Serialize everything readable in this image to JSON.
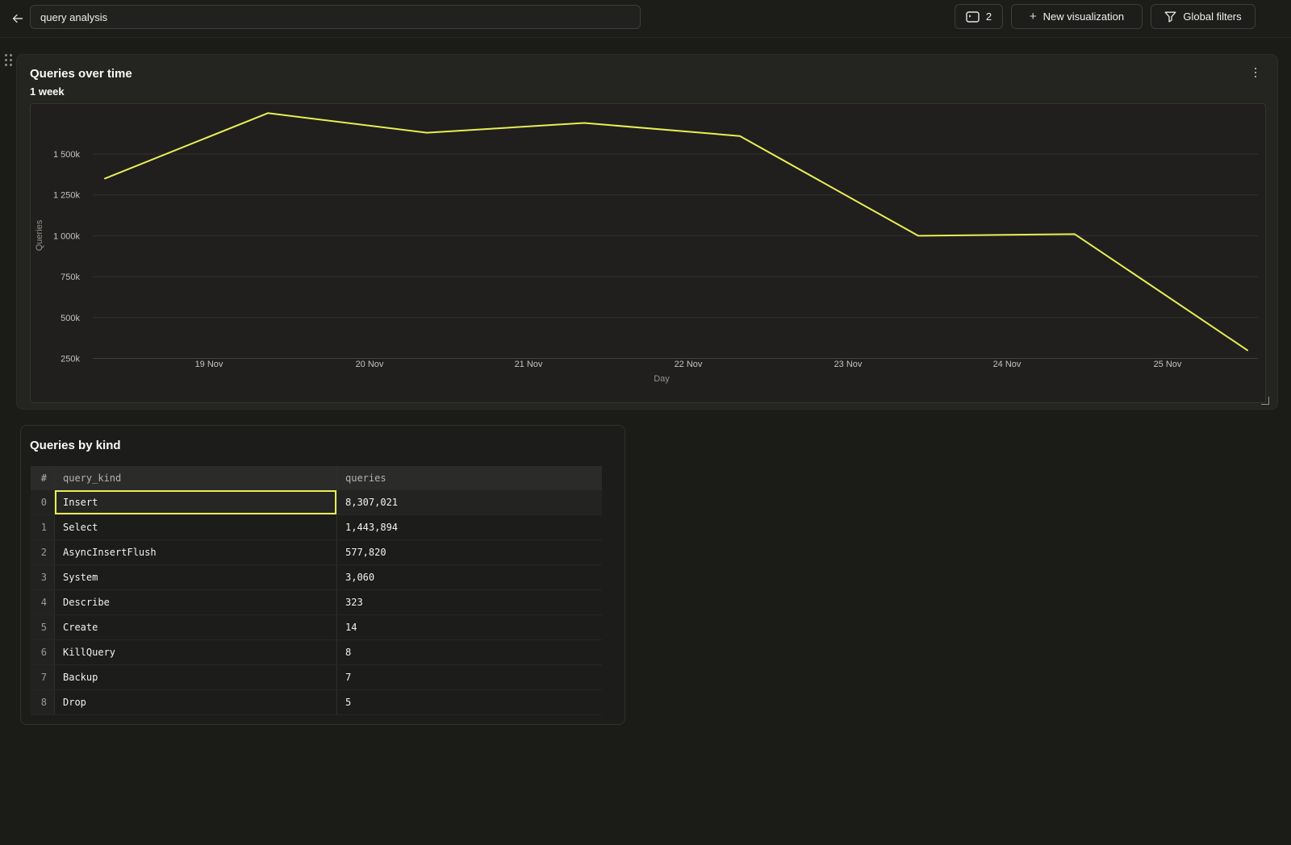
{
  "topbar": {
    "back_icon": "arrow-left",
    "dashboard_name": "query analysis",
    "tabs_button": {
      "icon": "console-icon",
      "count": "2"
    },
    "new_visualization": {
      "plus": "+",
      "label": "New visualization"
    },
    "global_filters": {
      "icon": "funnel-icon",
      "label": "Global filters"
    }
  },
  "chart_panel": {
    "title": "Queries over time",
    "subtitle": "1 week",
    "menu_icon": "kebab-menu"
  },
  "chart_data": {
    "type": "line",
    "title": "Queries over time",
    "xlabel": "Day",
    "ylabel": "Queries",
    "grid": true,
    "legend": false,
    "line_color": "#e9ee55",
    "y_ticks": [
      {
        "label": "1 500k",
        "value": 1500000
      },
      {
        "label": "1 250k",
        "value": 1250000
      },
      {
        "label": "1 000k",
        "value": 1000000
      },
      {
        "label": "750k",
        "value": 750000
      },
      {
        "label": "500k",
        "value": 500000
      },
      {
        "label": "250k",
        "value": 250000
      }
    ],
    "x_ticks": [
      "19 Nov",
      "20 Nov",
      "21 Nov",
      "22 Nov",
      "23 Nov",
      "24 Nov",
      "25 Nov"
    ],
    "series": [
      {
        "name": "Queries",
        "x": [
          "18 Nov",
          "19 Nov",
          "20 Nov",
          "21 Nov",
          "22 Nov",
          "23 Nov",
          "24 Nov",
          "25 Nov"
        ],
        "values": [
          1350000,
          1750000,
          1630000,
          1690000,
          1610000,
          1000000,
          1010000,
          300000
        ]
      }
    ]
  },
  "table_panel": {
    "title": "Queries by kind",
    "columns": [
      "#",
      "query_kind",
      "queries"
    ],
    "rows": [
      {
        "idx": "0",
        "query_kind": "Insert",
        "queries": "8,307,021",
        "selected": true
      },
      {
        "idx": "1",
        "query_kind": "Select",
        "queries": "1,443,894",
        "selected": false
      },
      {
        "idx": "2",
        "query_kind": "AsyncInsertFlush",
        "queries": "577,820",
        "selected": false
      },
      {
        "idx": "3",
        "query_kind": "System",
        "queries": "3,060",
        "selected": false
      },
      {
        "idx": "4",
        "query_kind": "Describe",
        "queries": "323",
        "selected": false
      },
      {
        "idx": "5",
        "query_kind": "Create",
        "queries": "14",
        "selected": false
      },
      {
        "idx": "6",
        "query_kind": "KillQuery",
        "queries": "8",
        "selected": false
      },
      {
        "idx": "7",
        "query_kind": "Backup",
        "queries": "7",
        "selected": false
      },
      {
        "idx": "8",
        "query_kind": "Drop",
        "queries": "5",
        "selected": false
      }
    ]
  },
  "colors": {
    "accent_yellow": "#e9ee55",
    "page_bg": "#1b1b18",
    "panel_bg": "#242421",
    "grid_line": "#32322f",
    "tick_text": "#c2c2bf",
    "axis_label_text": "#93938d"
  }
}
